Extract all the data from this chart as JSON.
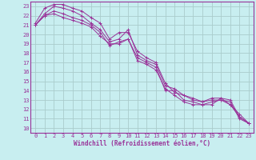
{
  "xlabel": "Windchill (Refroidissement éolien,°C)",
  "bg_color": "#c8eef0",
  "grid_color": "#aacccc",
  "line_color": "#993399",
  "xlim": [
    -0.5,
    23.5
  ],
  "ylim": [
    9.5,
    23.5
  ],
  "xticks": [
    0,
    1,
    2,
    3,
    4,
    5,
    6,
    7,
    8,
    9,
    10,
    11,
    12,
    13,
    14,
    15,
    16,
    17,
    18,
    19,
    20,
    21,
    22,
    23
  ],
  "yticks": [
    10,
    11,
    12,
    13,
    14,
    15,
    16,
    17,
    18,
    19,
    20,
    21,
    22,
    23
  ],
  "lines": [
    {
      "x": [
        0,
        1,
        2,
        3,
        4,
        5,
        6,
        7,
        8,
        9,
        10,
        11,
        12,
        13,
        14,
        15,
        16,
        17,
        18,
        19,
        20,
        21,
        22,
        23
      ],
      "y": [
        21.2,
        22.8,
        23.2,
        23.2,
        22.8,
        22.5,
        21.8,
        21.2,
        19.5,
        20.2,
        20.2,
        18.2,
        17.5,
        17.0,
        14.8,
        13.8,
        13.5,
        13.2,
        12.8,
        13.2,
        13.2,
        13.0,
        11.2,
        10.5
      ]
    },
    {
      "x": [
        0,
        1,
        2,
        3,
        4,
        5,
        6,
        7,
        8,
        9,
        10,
        11,
        12,
        13,
        14,
        15,
        16,
        17,
        18,
        19,
        20,
        21,
        22,
        23
      ],
      "y": [
        21.0,
        22.2,
        23.0,
        22.8,
        22.5,
        22.0,
        21.2,
        20.5,
        19.2,
        19.5,
        20.5,
        17.8,
        17.2,
        16.8,
        14.5,
        14.2,
        13.5,
        13.0,
        12.8,
        13.0,
        13.0,
        12.8,
        11.0,
        10.5
      ]
    },
    {
      "x": [
        0,
        1,
        2,
        3,
        4,
        5,
        6,
        7,
        8,
        9,
        10,
        11,
        12,
        13,
        14,
        15,
        16,
        17,
        18,
        19,
        20,
        21,
        22,
        23
      ],
      "y": [
        21.0,
        22.0,
        22.5,
        22.2,
        21.8,
        21.5,
        21.0,
        20.2,
        18.8,
        19.2,
        19.5,
        17.5,
        17.0,
        16.5,
        14.0,
        14.0,
        13.0,
        12.8,
        12.5,
        12.8,
        13.0,
        12.5,
        11.5,
        10.5
      ]
    },
    {
      "x": [
        0,
        1,
        2,
        3,
        4,
        5,
        6,
        7,
        8,
        9,
        10,
        11,
        12,
        13,
        14,
        15,
        16,
        17,
        18,
        19,
        20,
        21,
        22,
        23
      ],
      "y": [
        21.0,
        22.0,
        22.2,
        21.8,
        21.5,
        21.2,
        20.8,
        19.8,
        19.0,
        19.0,
        19.5,
        17.2,
        16.8,
        16.2,
        14.2,
        13.5,
        12.8,
        12.5,
        12.5,
        12.5,
        13.2,
        12.5,
        11.2,
        10.5
      ]
    }
  ]
}
